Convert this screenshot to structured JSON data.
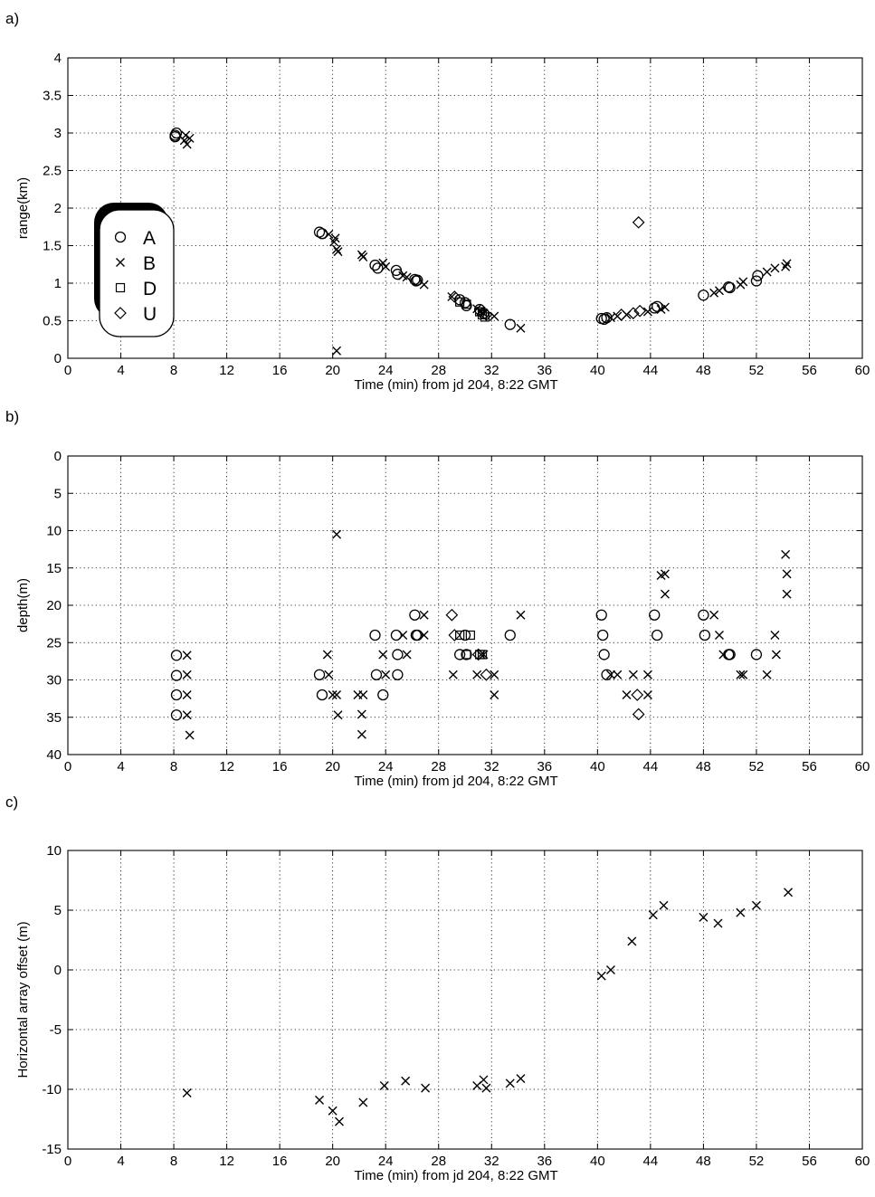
{
  "chart_data": [
    {
      "panel": "a)",
      "type": "scatter",
      "xlabel": "Time (min) from jd 204, 8:22 GMT",
      "ylabel": "range(km)",
      "xlim": [
        0,
        60
      ],
      "ylim": [
        0,
        4
      ],
      "xticks": [
        0,
        4,
        8,
        12,
        16,
        20,
        24,
        28,
        32,
        36,
        40,
        44,
        48,
        52,
        56,
        60
      ],
      "yticks": [
        0,
        0.5,
        1,
        1.5,
        2,
        2.5,
        3,
        3.5,
        4
      ],
      "grid": true,
      "legend": {
        "position": "left",
        "entries": [
          {
            "label": "A",
            "marker": "circle"
          },
          {
            "label": "B",
            "marker": "x"
          },
          {
            "label": "D",
            "marker": "square"
          },
          {
            "label": "U",
            "marker": "diamond"
          }
        ]
      },
      "series": [
        {
          "name": "A",
          "marker": "circle",
          "x": [
            8.1,
            8.2,
            8.1,
            19.0,
            19.2,
            23.2,
            23.4,
            24.8,
            24.9,
            26.2,
            26.3,
            26.4,
            29.6,
            30.0,
            30.1,
            31.1,
            31.4,
            33.4,
            40.3,
            40.5,
            40.7,
            44.3,
            44.5,
            48.0,
            49.9,
            50.0,
            52.0,
            52.1
          ],
          "y": [
            2.95,
            3.0,
            2.97,
            1.68,
            1.66,
            1.24,
            1.2,
            1.17,
            1.12,
            1.05,
            1.03,
            1.04,
            0.78,
            0.74,
            0.7,
            0.65,
            0.6,
            0.45,
            0.53,
            0.52,
            0.54,
            0.67,
            0.69,
            0.84,
            0.95,
            0.94,
            1.03,
            1.1
          ]
        },
        {
          "name": "B",
          "marker": "x",
          "x": [
            8.8,
            9.0,
            9.2,
            8.9,
            19.7,
            20.1,
            20.3,
            20.4,
            20.2,
            22.2,
            22.3,
            23.8,
            24.0,
            25.3,
            25.6,
            26.9,
            29.0,
            30.9,
            31.2,
            31.4,
            32.2,
            34.2,
            41.0,
            41.5,
            42.2,
            43.8,
            44.8,
            45.1,
            48.8,
            49.2,
            50.8,
            51.0,
            52.8,
            53.4,
            54.2,
            54.3,
            20.3
          ],
          "y": [
            2.9,
            2.85,
            2.93,
            2.97,
            1.65,
            1.55,
            1.45,
            1.42,
            1.6,
            1.38,
            1.35,
            1.27,
            1.22,
            1.1,
            1.08,
            0.98,
            0.82,
            0.66,
            0.63,
            0.6,
            0.56,
            0.4,
            0.54,
            0.56,
            0.58,
            0.62,
            0.65,
            0.68,
            0.87,
            0.9,
            0.98,
            1.02,
            1.15,
            1.2,
            1.22,
            1.26,
            0.1
          ]
        },
        {
          "name": "D",
          "marker": "square",
          "x": [
            29.6,
            30.1,
            31.1,
            31.3,
            31.5
          ],
          "y": [
            0.75,
            0.72,
            0.62,
            0.58,
            0.55
          ]
        },
        {
          "name": "U",
          "marker": "diamond",
          "x": [
            29.2,
            31.6,
            41.8,
            42.7,
            43.2,
            43.1
          ],
          "y": [
            0.82,
            0.58,
            0.58,
            0.6,
            0.63,
            1.81
          ]
        }
      ]
    },
    {
      "panel": "b)",
      "type": "scatter",
      "xlabel": "Time (min) from jd 204, 8:22 GMT",
      "ylabel": "depth(m)",
      "xlim": [
        0,
        60
      ],
      "ylim": [
        40,
        0
      ],
      "yaxis_inverted": true,
      "xticks": [
        0,
        4,
        8,
        12,
        16,
        20,
        24,
        28,
        32,
        36,
        40,
        44,
        48,
        52,
        56,
        60
      ],
      "yticks": [
        0,
        5,
        10,
        15,
        20,
        25,
        30,
        35,
        40
      ],
      "grid": true,
      "series": [
        {
          "name": "A",
          "marker": "circle",
          "x": [
            8.2,
            8.2,
            8.2,
            8.2,
            19.0,
            19.2,
            23.2,
            23.3,
            23.8,
            24.8,
            24.9,
            24.9,
            26.2,
            26.3,
            26.4,
            29.6,
            30.0,
            30.1,
            33.4,
            40.3,
            40.4,
            40.5,
            40.7,
            44.3,
            44.5,
            48.0,
            48.1,
            49.9,
            50.0,
            52.0
          ],
          "y": [
            26.7,
            29.4,
            32.0,
            34.7,
            29.3,
            32.0,
            24.0,
            29.3,
            32.0,
            24.0,
            26.6,
            29.3,
            21.3,
            24.0,
            24.0,
            26.6,
            24.0,
            26.6,
            24.0,
            21.3,
            24.0,
            26.6,
            29.3,
            21.3,
            24.0,
            21.3,
            24.0,
            26.6,
            26.6,
            26.6
          ]
        },
        {
          "name": "B",
          "marker": "x",
          "x": [
            9.0,
            9.0,
            9.0,
            9.0,
            9.2,
            19.6,
            19.7,
            20.0,
            20.3,
            20.4,
            20.3,
            21.9,
            22.2,
            22.2,
            22.3,
            23.8,
            24.0,
            25.3,
            25.6,
            26.9,
            26.9,
            29.1,
            30.9,
            31.2,
            31.4,
            32.2,
            32.2,
            34.2,
            41.0,
            41.5,
            42.2,
            42.7,
            43.8,
            43.8,
            44.8,
            45.1,
            45.1,
            48.8,
            49.2,
            49.5,
            50.8,
            51.0,
            52.8,
            53.4,
            53.5,
            54.2,
            54.3,
            54.3
          ],
          "y": [
            26.7,
            29.3,
            32.0,
            34.7,
            37.4,
            26.6,
            29.3,
            32.0,
            32.0,
            34.7,
            10.5,
            32.0,
            34.6,
            37.3,
            32.0,
            26.6,
            29.3,
            24.0,
            26.6,
            21.3,
            24.0,
            29.3,
            29.3,
            26.6,
            26.6,
            29.3,
            32.0,
            21.3,
            29.3,
            29.3,
            32.0,
            29.3,
            29.3,
            32.0,
            16.0,
            15.8,
            18.5,
            21.3,
            24.0,
            26.6,
            29.3,
            29.3,
            29.3,
            24.0,
            26.6,
            13.2,
            15.8,
            18.5
          ]
        },
        {
          "name": "D",
          "marker": "square",
          "x": [
            29.6,
            30.1,
            30.4,
            31.1,
            31.3
          ],
          "y": [
            24.0,
            26.6,
            24.0,
            26.6,
            26.6
          ]
        },
        {
          "name": "U",
          "marker": "diamond",
          "x": [
            29.0,
            29.2,
            31.0,
            31.6,
            43.0,
            43.1
          ],
          "y": [
            21.3,
            24.0,
            26.6,
            29.3,
            32.0,
            34.6
          ]
        }
      ]
    },
    {
      "panel": "c)",
      "type": "scatter",
      "xlabel": "Time (min) from jd 204, 8:22 GMT",
      "ylabel": "Horizontal array offset (m)",
      "xlim": [
        0,
        60
      ],
      "ylim": [
        -15,
        10
      ],
      "xticks": [
        0,
        4,
        8,
        12,
        16,
        20,
        24,
        28,
        32,
        36,
        40,
        44,
        48,
        52,
        56,
        60
      ],
      "yticks": [
        -15,
        -10,
        -5,
        0,
        5,
        10
      ],
      "grid": true,
      "series": [
        {
          "name": "B",
          "marker": "x",
          "x": [
            9.0,
            19.0,
            20.0,
            20.5,
            22.3,
            23.9,
            25.5,
            27.0,
            30.9,
            31.4,
            31.6,
            33.4,
            34.2,
            40.3,
            41.0,
            42.6,
            44.2,
            45.0,
            48.0,
            49.1,
            50.8,
            52.0,
            54.4
          ],
          "y": [
            -10.3,
            -10.9,
            -11.8,
            -12.7,
            -11.1,
            -9.7,
            -9.3,
            -9.9,
            -9.7,
            -9.2,
            -9.9,
            -9.5,
            -9.1,
            -0.5,
            0.0,
            2.4,
            4.6,
            5.4,
            4.4,
            3.9,
            4.8,
            5.4,
            6.5
          ]
        }
      ]
    }
  ]
}
